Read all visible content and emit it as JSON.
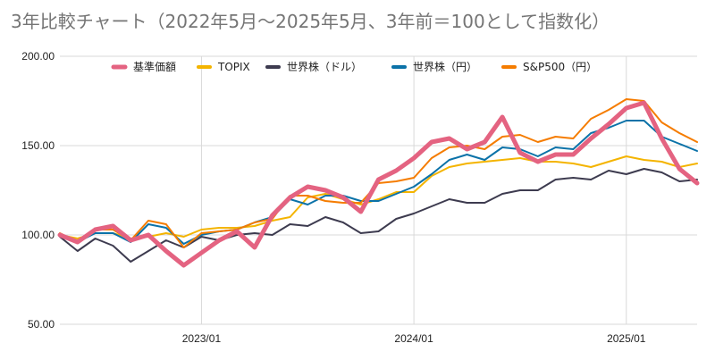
{
  "chart_data": {
    "type": "line",
    "title": "3年比較チャート（2022年5月～2025年5月、3年前＝100として指数化）",
    "xlabel": "",
    "ylabel": "",
    "ylim": [
      50,
      200
    ],
    "yticks": [
      "50.00",
      "100.00",
      "150.00",
      "200.00"
    ],
    "xticks": [
      {
        "label": "2023/01",
        "index": 8
      },
      {
        "label": "2024/01",
        "index": 20
      },
      {
        "label": "2025/01",
        "index": 32
      }
    ],
    "grid": true,
    "legend_position": "top",
    "x": [
      "2022/05",
      "2022/06",
      "2022/07",
      "2022/08",
      "2022/09",
      "2022/10",
      "2022/11",
      "2022/12",
      "2023/01",
      "2023/02",
      "2023/03",
      "2023/04",
      "2023/05",
      "2023/06",
      "2023/07",
      "2023/08",
      "2023/09",
      "2023/10",
      "2023/11",
      "2023/12",
      "2024/01",
      "2024/02",
      "2024/03",
      "2024/04",
      "2024/05",
      "2024/06",
      "2024/07",
      "2024/08",
      "2024/09",
      "2024/10",
      "2024/11",
      "2024/12",
      "2025/01",
      "2025/02",
      "2025/03",
      "2025/04",
      "2025/05"
    ],
    "series": [
      {
        "name": "基準価額",
        "color": "#e46381",
        "width": 5,
        "values": [
          100,
          96,
          103,
          105,
          97,
          100,
          91,
          83,
          90,
          97,
          102,
          93,
          111,
          121,
          127,
          125,
          121,
          113,
          131,
          136,
          143,
          152,
          154,
          148,
          152,
          166,
          146,
          141,
          145,
          145,
          154,
          162,
          171,
          174,
          154,
          137,
          129
        ]
      },
      {
        "name": "TOPIX",
        "color": "#f4b400",
        "width": 2,
        "values": [
          100,
          98,
          101,
          101,
          98,
          99,
          101,
          99,
          103,
          104,
          104,
          105,
          108,
          110,
          121,
          123,
          120,
          117,
          120,
          124,
          124,
          133,
          138,
          140,
          141,
          142,
          143,
          141,
          141,
          140,
          138,
          141,
          144,
          142,
          141,
          138,
          140
        ]
      },
      {
        "name": "世界株（ドル）",
        "color": "#3d3b4f",
        "width": 2,
        "values": [
          99,
          91,
          98,
          94,
          85,
          91,
          97,
          93,
          99,
          97,
          100,
          101,
          100,
          106,
          105,
          110,
          107,
          101,
          102,
          109,
          112,
          116,
          120,
          118,
          118,
          123,
          125,
          125,
          131,
          132,
          131,
          136,
          134,
          137,
          135,
          130,
          131
        ]
      },
      {
        "name": "世界株（円）",
        "color": "#0b72a8",
        "width": 2,
        "values": [
          100,
          96,
          101,
          101,
          96,
          106,
          104,
          95,
          100,
          102,
          103,
          107,
          110,
          120,
          117,
          122,
          122,
          119,
          119,
          123,
          127,
          134,
          142,
          145,
          142,
          149,
          148,
          144,
          149,
          148,
          157,
          160,
          164,
          164,
          155,
          151,
          147
        ]
      },
      {
        "name": "S&P500（円）",
        "color": "#f57c00",
        "width": 2,
        "values": [
          101,
          96,
          103,
          103,
          97,
          108,
          106,
          93,
          101,
          102,
          103,
          107,
          109,
          122,
          122,
          119,
          118,
          118,
          129,
          130,
          132,
          143,
          149,
          150,
          148,
          155,
          156,
          152,
          155,
          154,
          165,
          170,
          176,
          175,
          163,
          157,
          152
        ]
      }
    ]
  }
}
